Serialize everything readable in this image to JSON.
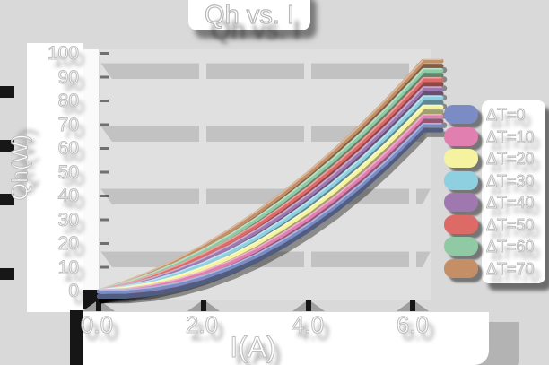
{
  "title": "Qh vs. I",
  "y_axis": {
    "label": "Qh(W)",
    "ticks": [
      "100",
      "90",
      "80",
      "70",
      "60",
      "50",
      "40",
      "30",
      "20",
      "10",
      "0"
    ]
  },
  "x_axis": {
    "label": "I(A)",
    "ticks": [
      "0.0",
      "2.0",
      "4.0",
      "6.0"
    ]
  },
  "legend": {
    "position": "right",
    "items": [
      {
        "label": "ΔT=0",
        "color": "#7b8cc4"
      },
      {
        "label": "ΔT=10",
        "color": "#e17fb0"
      },
      {
        "label": "ΔT=20",
        "color": "#f6f3a0"
      },
      {
        "label": "ΔT=30",
        "color": "#8fd0e0"
      },
      {
        "label": "ΔT=40",
        "color": "#a078b0"
      },
      {
        "label": "ΔT=50",
        "color": "#dd6a66"
      },
      {
        "label": "ΔT=60",
        "color": "#90caa5"
      },
      {
        "label": "ΔT=70",
        "color": "#c48f66"
      }
    ]
  },
  "chart_data": {
    "type": "line",
    "title": "Qh vs. I",
    "xlabel": "I(A)",
    "ylabel": "Qh(W)",
    "xlim": [
      0,
      6.5
    ],
    "ylim": [
      0,
      100
    ],
    "x_ticks": [
      0.0,
      2.0,
      4.0,
      6.0
    ],
    "y_tick_step": 10,
    "legend_position": "right",
    "grid": "horizontal-bands",
    "style": "3d-drop-shadow-ribbons",
    "x": [
      0,
      0.5,
      1,
      1.5,
      2,
      2.5,
      3,
      3.5,
      4,
      4.5,
      5,
      5.5,
      6,
      6.2
    ],
    "series": [
      {
        "name": "ΔT=0",
        "color": "#7b8cc4",
        "values": [
          0,
          0.0,
          1.0,
          3.0,
          6.0,
          10.0,
          14.9,
          20.9,
          27.8,
          35.7,
          44.6,
          54.5,
          65.4,
          70.0
        ]
      },
      {
        "name": "ΔT=10",
        "color": "#e17fb0",
        "values": [
          0,
          0.5,
          2.0,
          4.5,
          7.9,
          12.2,
          17.5,
          23.7,
          30.9,
          39.1,
          48.1,
          58.2,
          69.2,
          73.8
        ]
      },
      {
        "name": "ΔT=20",
        "color": "#f6f3a0",
        "values": [
          0,
          1.1,
          3.0,
          5.9,
          9.7,
          14.4,
          20.0,
          26.6,
          34.0,
          42.4,
          51.7,
          61.9,
          73.0,
          77.7
        ]
      },
      {
        "name": "ΔT=30",
        "color": "#8fd0e0",
        "values": [
          0,
          1.6,
          4.0,
          7.4,
          11.6,
          16.6,
          22.6,
          29.5,
          37.2,
          45.8,
          55.2,
          65.6,
          76.8,
          81.6
        ]
      },
      {
        "name": "ΔT=40",
        "color": "#a078b0",
        "values": [
          0,
          2.1,
          5.0,
          8.8,
          13.4,
          18.9,
          25.2,
          32.3,
          40.3,
          49.1,
          58.8,
          69.3,
          80.6,
          85.4
        ]
      },
      {
        "name": "ΔT=50",
        "color": "#dd6a66",
        "values": [
          0,
          2.6,
          6.0,
          10.3,
          15.3,
          21.1,
          27.7,
          35.2,
          43.4,
          52.5,
          62.3,
          73.0,
          84.4,
          89.3
        ]
      },
      {
        "name": "ΔT=60",
        "color": "#90caa5",
        "values": [
          0,
          3.1,
          7.0,
          11.7,
          17.1,
          23.3,
          30.3,
          38.0,
          46.6,
          55.8,
          65.9,
          76.7,
          88.3,
          93.1
        ]
      },
      {
        "name": "ΔT=70",
        "color": "#c48f66",
        "values": [
          0,
          3.7,
          8.0,
          13.1,
          19.0,
          25.6,
          32.9,
          40.9,
          49.7,
          59.2,
          69.4,
          80.4,
          92.1,
          97.0
        ]
      }
    ]
  }
}
